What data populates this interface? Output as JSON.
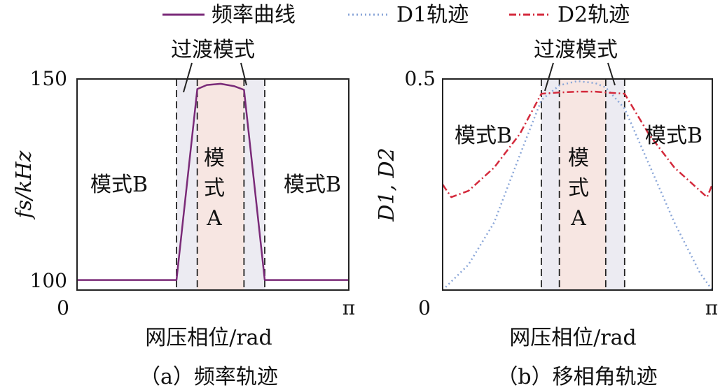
{
  "legend": [
    {
      "label": "频率曲线",
      "color": "#7a2a78",
      "style": "solid"
    },
    {
      "label": "D1轨迹",
      "color": "#8aa6d8",
      "style": "dotted"
    },
    {
      "label": "D2轨迹",
      "color": "#d42a3c",
      "style": "dashdot"
    }
  ],
  "colors": {
    "frame": "#222222",
    "mode_a_fill": "#f7e6e2",
    "transition_fill": "#ecebf2"
  },
  "chart_data": [
    {
      "type": "line",
      "caption": "（a）频率轨迹",
      "xlabel": "网压相位/rad",
      "ylabel": "fs/kHz",
      "x_tick_labels": [
        "0",
        "π"
      ],
      "y_ticks": [
        100,
        150
      ],
      "ylim": [
        97.5,
        150
      ],
      "x_range_rad": [
        0,
        3.1416
      ],
      "annotations": {
        "transition": "过渡模式",
        "mode_b_left": "模式B",
        "mode_b_right": "模式B",
        "mode_a": [
          "模",
          "式",
          "A"
        ]
      },
      "bounds_rad": {
        "trans_left": [
          1.15,
          1.39
        ],
        "mode_a": [
          1.39,
          1.93
        ],
        "trans_right": [
          1.93,
          2.17
        ]
      },
      "series": [
        {
          "name": "频率曲线",
          "x": [
            0.0,
            1.15,
            1.39,
            1.5,
            1.66,
            1.82,
            1.93,
            2.17,
            3.1416
          ],
          "y": [
            100.0,
            100.0,
            147.5,
            148.5,
            148.8,
            148.2,
            147.3,
            100.0,
            100.0
          ]
        }
      ]
    },
    {
      "type": "line",
      "caption": "（b）移相角轨迹",
      "xlabel": "网压相位/rad",
      "ylabel": "D1, D2",
      "x_tick_labels": [
        "0",
        "π"
      ],
      "y_ticks": [
        0.5
      ],
      "ylim": [
        0,
        0.5
      ],
      "x_range_rad": [
        0,
        3.1416
      ],
      "annotations": {
        "transition": "过渡模式",
        "mode_b_left": "模式B",
        "mode_b_right": "模式B",
        "mode_a": [
          "模",
          "式",
          "A"
        ]
      },
      "bounds_rad": {
        "trans_left": [
          1.15,
          1.36
        ],
        "mode_a": [
          1.36,
          1.9
        ],
        "trans_right": [
          1.9,
          2.12
        ]
      },
      "series": [
        {
          "name": "D1",
          "x": [
            0.0,
            0.3,
            0.6,
            0.9,
            1.15,
            1.36,
            1.57,
            1.78,
            1.9,
            2.12,
            2.4,
            2.7,
            3.0,
            3.1416
          ],
          "y": [
            0.0,
            0.06,
            0.16,
            0.32,
            0.45,
            0.485,
            0.495,
            0.49,
            0.48,
            0.43,
            0.3,
            0.16,
            0.04,
            0.0
          ]
        },
        {
          "name": "D2",
          "x": [
            0.0,
            0.1,
            0.3,
            0.6,
            0.9,
            1.15,
            1.36,
            1.57,
            1.78,
            1.9,
            2.12,
            2.4,
            2.7,
            3.0,
            3.08,
            3.1416
          ],
          "y": [
            0.25,
            0.22,
            0.235,
            0.29,
            0.37,
            0.465,
            0.468,
            0.47,
            0.47,
            0.468,
            0.465,
            0.37,
            0.29,
            0.235,
            0.22,
            0.25
          ]
        }
      ]
    }
  ]
}
